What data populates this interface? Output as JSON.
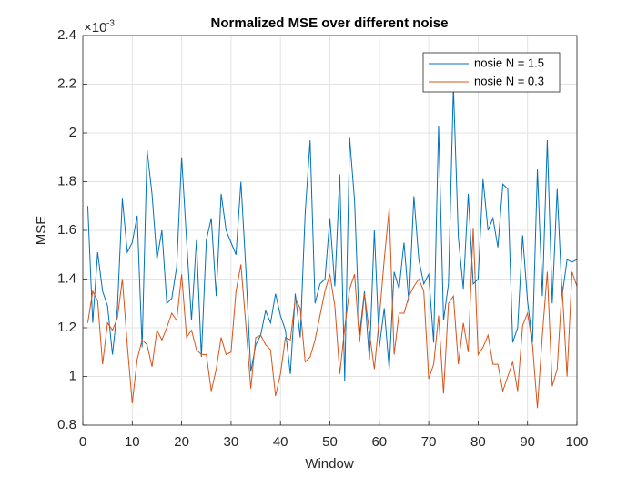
{
  "chart_data": {
    "type": "line",
    "title": "Normalized MSE over different noise",
    "x_label": "Window",
    "y_label": "MSE",
    "y_exponent": {
      "base": "×10",
      "power": "-3"
    },
    "xlim": [
      0,
      100
    ],
    "xticks": [
      0,
      10,
      20,
      30,
      40,
      50,
      60,
      70,
      80,
      90,
      100
    ],
    "ylim": [
      0.8,
      2.4
    ],
    "yticks": [
      0.8,
      1,
      1.2,
      1.4,
      1.6,
      1.8,
      2,
      2.2,
      2.4
    ],
    "grid": true,
    "legend_position": "top-right",
    "x": [
      1,
      2,
      3,
      4,
      5,
      6,
      7,
      8,
      9,
      10,
      11,
      12,
      13,
      14,
      15,
      16,
      17,
      18,
      19,
      20,
      21,
      22,
      23,
      24,
      25,
      26,
      27,
      28,
      29,
      30,
      31,
      32,
      33,
      34,
      35,
      36,
      37,
      38,
      39,
      40,
      41,
      42,
      43,
      44,
      45,
      46,
      47,
      48,
      49,
      50,
      51,
      52,
      53,
      54,
      55,
      56,
      57,
      58,
      59,
      60,
      61,
      62,
      63,
      64,
      65,
      66,
      67,
      68,
      69,
      70,
      71,
      72,
      73,
      74,
      75,
      76,
      77,
      78,
      79,
      80,
      81,
      82,
      83,
      84,
      85,
      86,
      87,
      88,
      89,
      90,
      91,
      92,
      93,
      94,
      95,
      96,
      97,
      98,
      99,
      100
    ],
    "series": [
      {
        "name": "nosie N = 1.5",
        "color": "#0072BD",
        "values": [
          1.7,
          1.22,
          1.51,
          1.35,
          1.29,
          1.09,
          1.28,
          1.73,
          1.51,
          1.55,
          1.66,
          1.12,
          1.93,
          1.75,
          1.48,
          1.6,
          1.3,
          1.32,
          1.45,
          1.9,
          1.56,
          1.23,
          1.56,
          1.08,
          1.56,
          1.65,
          1.33,
          1.75,
          1.6,
          1.55,
          1.5,
          1.8,
          1.44,
          1.02,
          1.13,
          1.17,
          1.27,
          1.22,
          1.34,
          1.25,
          1.19,
          1.01,
          1.34,
          1.16,
          1.67,
          1.97,
          1.3,
          1.38,
          1.4,
          1.65,
          1.37,
          1.83,
          0.98,
          1.98,
          1.72,
          1.17,
          1.35,
          1.07,
          1.6,
          1.12,
          1.28,
          1.03,
          1.43,
          1.36,
          1.55,
          1.3,
          1.74,
          1.48,
          1.38,
          1.42,
          1.14,
          2.03,
          1.23,
          1.38,
          2.19,
          1.57,
          1.36,
          1.75,
          1.38,
          1.4,
          1.81,
          1.6,
          1.65,
          1.53,
          1.79,
          1.77,
          1.14,
          1.2,
          1.58,
          1.31,
          1.14,
          1.85,
          1.33,
          1.97,
          1.3,
          1.77,
          1.33,
          1.48,
          1.47,
          1.48
        ]
      },
      {
        "name": "nosie N = 0.3",
        "color": "#D95319",
        "values": [
          1.22,
          1.35,
          1.31,
          1.05,
          1.22,
          1.19,
          1.24,
          1.4,
          1.13,
          0.89,
          1.07,
          1.15,
          1.13,
          1.04,
          1.19,
          1.15,
          1.2,
          1.26,
          1.23,
          1.42,
          1.16,
          1.19,
          1.11,
          1.09,
          1.09,
          0.94,
          1.03,
          1.16,
          1.09,
          1.1,
          1.35,
          1.46,
          1.21,
          0.95,
          1.16,
          1.17,
          1.13,
          1.11,
          0.92,
          1.01,
          1.16,
          1.15,
          1.32,
          1.28,
          1.06,
          1.08,
          1.15,
          1.25,
          1.35,
          1.42,
          1.29,
          1.01,
          1.2,
          1.36,
          1.42,
          1.14,
          1.34,
          1.18,
          1.03,
          1.24,
          1.48,
          1.69,
          1.09,
          1.26,
          1.26,
          1.33,
          1.37,
          1.4,
          1.35,
          0.99,
          1.05,
          1.25,
          0.93,
          1.3,
          1.33,
          1.05,
          1.22,
          1.1,
          1.61,
          1.09,
          1.12,
          1.17,
          1.05,
          1.05,
          0.94,
          1.0,
          1.06,
          0.94,
          1.21,
          1.26,
          1.13,
          0.87,
          1.17,
          1.43,
          0.96,
          1.03,
          1.37,
          1.0,
          1.43,
          1.37
        ]
      }
    ]
  }
}
